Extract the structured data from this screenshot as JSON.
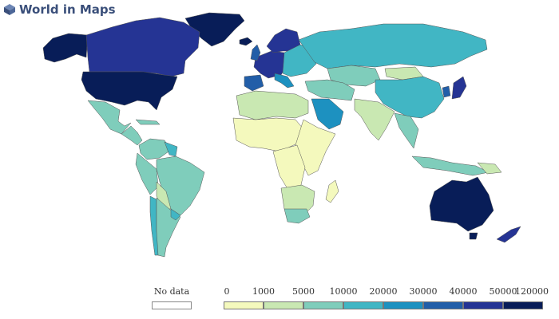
{
  "brand": {
    "title": "World in Maps",
    "icon": "globe-cube-icon"
  },
  "legend": {
    "no_data_label": "No data",
    "no_data_color": "#ffffff",
    "ticks": [
      "0",
      "1000",
      "5000",
      "10000",
      "20000",
      "30000",
      "40000",
      "50000",
      "120000"
    ],
    "colors": [
      "#f4f9bd",
      "#c9e8b2",
      "#7fcdbb",
      "#41b6c4",
      "#1d91c0",
      "#225ea8",
      "#253494",
      "#081d58"
    ]
  }
}
